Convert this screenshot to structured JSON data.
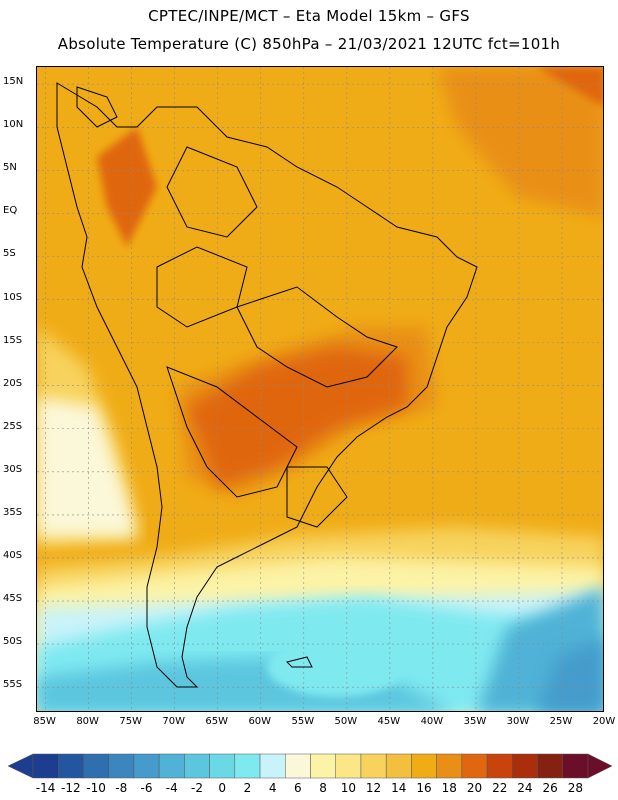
{
  "header": {
    "line1": "CPTEC/INPE/MCT –  Eta Model 15km – GFS",
    "line2": "Absolute Temperature (C) 850hPa – 21/03/2021 12UTC fct=101h"
  },
  "map": {
    "lon_range": [
      -86,
      -20
    ],
    "lat_range": [
      -58,
      17
    ],
    "lat_ticks": [
      {
        "value": 15,
        "label": "15N"
      },
      {
        "value": 10,
        "label": "10N"
      },
      {
        "value": 5,
        "label": "5N"
      },
      {
        "value": 0,
        "label": "EQ"
      },
      {
        "value": -5,
        "label": "5S"
      },
      {
        "value": -10,
        "label": "10S"
      },
      {
        "value": -15,
        "label": "15S"
      },
      {
        "value": -20,
        "label": "20S"
      },
      {
        "value": -25,
        "label": "25S"
      },
      {
        "value": -30,
        "label": "30S"
      },
      {
        "value": -35,
        "label": "35S"
      },
      {
        "value": -40,
        "label": "40S"
      },
      {
        "value": -45,
        "label": "45S"
      },
      {
        "value": -50,
        "label": "50S"
      },
      {
        "value": -55,
        "label": "55S"
      }
    ],
    "lon_ticks": [
      {
        "value": -85,
        "label": "85W"
      },
      {
        "value": -80,
        "label": "80W"
      },
      {
        "value": -75,
        "label": "75W"
      },
      {
        "value": -70,
        "label": "70W"
      },
      {
        "value": -65,
        "label": "65W"
      },
      {
        "value": -60,
        "label": "60W"
      },
      {
        "value": -55,
        "label": "55W"
      },
      {
        "value": -50,
        "label": "50W"
      },
      {
        "value": -45,
        "label": "45W"
      },
      {
        "value": -40,
        "label": "40W"
      },
      {
        "value": -35,
        "label": "35W"
      },
      {
        "value": -30,
        "label": "30W"
      },
      {
        "value": -25,
        "label": "25W"
      },
      {
        "value": -20,
        "label": "20W"
      }
    ]
  },
  "colorbar": {
    "labels": [
      "-14",
      "-12",
      "-10",
      "-8",
      "-6",
      "-4",
      "-2",
      "0",
      "2",
      "4",
      "6",
      "8",
      "10",
      "12",
      "14",
      "16",
      "18",
      "20",
      "22",
      "24",
      "26",
      "28"
    ],
    "colors": [
      "#1d3e8f",
      "#2456a0",
      "#2f6fb0",
      "#3b86bf",
      "#459ccc",
      "#4fb2d6",
      "#5cc6df",
      "#6bd8e6",
      "#7fe9f0",
      "#c9f3fa",
      "#fbf8d9",
      "#fcf3a6",
      "#fbe787",
      "#f7d35d",
      "#f2bf3e",
      "#f0ac16",
      "#e98f17",
      "#e0660f",
      "#c9430d",
      "#aa2d0c",
      "#842113",
      "#6b0e2a"
    ]
  }
}
